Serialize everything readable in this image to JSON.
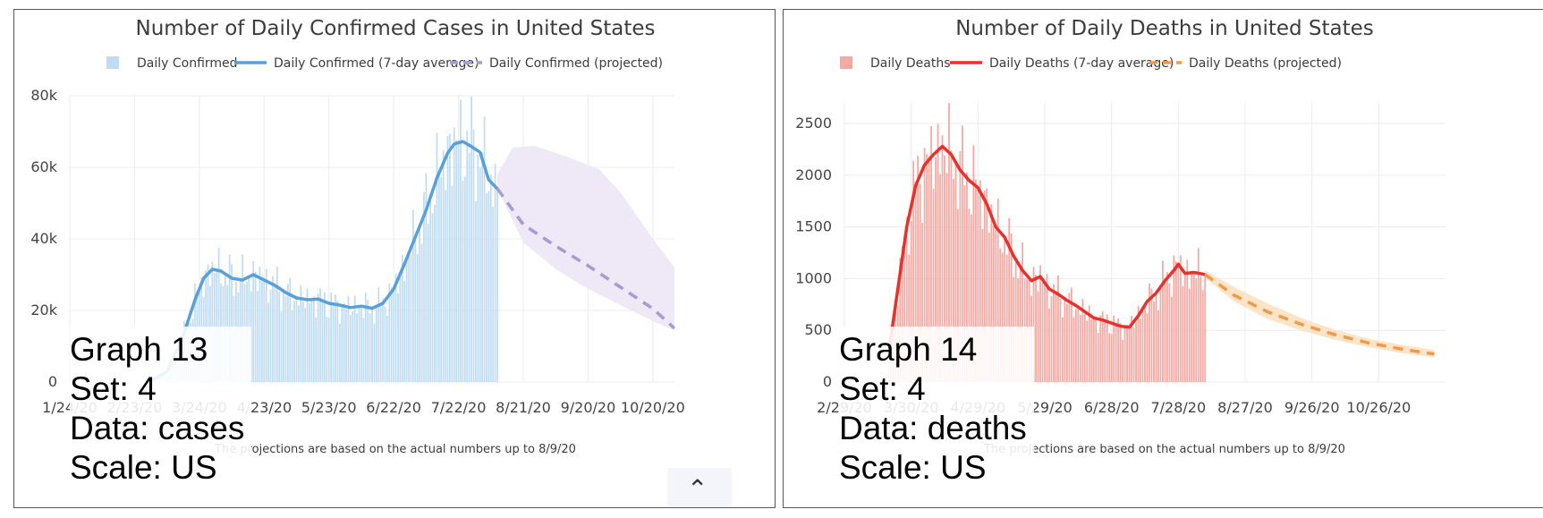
{
  "chart_data": [
    {
      "id": "cases",
      "type": "bar",
      "title": "Number of Daily Confirmed Cases in United States",
      "footnote": "The projections are based on the actual numbers up to 8/9/20",
      "legend": {
        "placement": "top-center",
        "bars": "Daily Confirmed",
        "avg": "Daily Confirmed (7-day average)",
        "proj": "Daily Confirmed (projected)"
      },
      "colors": {
        "bars": "#c0dcf3",
        "avg": "#5aa0d8",
        "proj": "#a99ad1",
        "band": "#efe8f6"
      },
      "ylim": [
        0,
        80000
      ],
      "yticks": [
        {
          "v": 0,
          "label": "0"
        },
        {
          "v": 20000,
          "label": "20k"
        },
        {
          "v": 40000,
          "label": "40k"
        },
        {
          "v": 60000,
          "label": "60k"
        },
        {
          "v": 80000,
          "label": "80k"
        }
      ],
      "xlim": [
        0,
        280
      ],
      "xticks": [
        {
          "v": 0,
          "label": "1/24/20"
        },
        {
          "v": 30,
          "label": "2/23/20"
        },
        {
          "v": 60,
          "label": "3/24/20"
        },
        {
          "v": 90,
          "label": "4/23/20"
        },
        {
          "v": 120,
          "label": "5/23/20"
        },
        {
          "v": 150,
          "label": "6/22/20"
        },
        {
          "v": 180,
          "label": "7/22/20"
        },
        {
          "v": 210,
          "label": "8/21/20"
        },
        {
          "v": 240,
          "label": "9/20/20"
        },
        {
          "v": 270,
          "label": "10/20/20"
        }
      ],
      "bars_range": [
        37,
        198
      ],
      "avg_points": [
        [
          37,
          0
        ],
        [
          45,
          3000
        ],
        [
          52,
          12000
        ],
        [
          58,
          23000
        ],
        [
          62,
          29000
        ],
        [
          66,
          31500
        ],
        [
          70,
          31000
        ],
        [
          75,
          29000
        ],
        [
          80,
          28500
        ],
        [
          85,
          30000
        ],
        [
          90,
          28500
        ],
        [
          95,
          27000
        ],
        [
          100,
          25000
        ],
        [
          105,
          23500
        ],
        [
          110,
          23000
        ],
        [
          115,
          23200
        ],
        [
          120,
          22000
        ],
        [
          125,
          21500
        ],
        [
          130,
          20800
        ],
        [
          135,
          21200
        ],
        [
          140,
          20600
        ],
        [
          145,
          22000
        ],
        [
          150,
          26000
        ],
        [
          155,
          33000
        ],
        [
          160,
          40500
        ],
        [
          165,
          48000
        ],
        [
          170,
          57000
        ],
        [
          175,
          64000
        ],
        [
          178,
          66500
        ],
        [
          182,
          67200
        ],
        [
          186,
          65800
        ],
        [
          190,
          64200
        ],
        [
          194,
          56500
        ],
        [
          198,
          54000
        ]
      ],
      "proj_points": [
        [
          198,
          54000
        ],
        [
          210,
          44000
        ],
        [
          225,
          38000
        ],
        [
          240,
          32500
        ],
        [
          255,
          26500
        ],
        [
          270,
          20500
        ],
        [
          280,
          15000
        ]
      ],
      "band_upper": [
        [
          198,
          58000
        ],
        [
          205,
          65500
        ],
        [
          215,
          66000
        ],
        [
          230,
          63000
        ],
        [
          245,
          59500
        ],
        [
          255,
          53000
        ],
        [
          270,
          40000
        ],
        [
          280,
          32000
        ]
      ],
      "band_lower": [
        [
          198,
          54000
        ],
        [
          210,
          39000
        ],
        [
          225,
          31500
        ],
        [
          240,
          26000
        ],
        [
          255,
          21500
        ],
        [
          270,
          17000
        ],
        [
          280,
          14500
        ]
      ],
      "overlay": {
        "graph": "Graph 13",
        "set": "Set: 4",
        "data": "Data: cases",
        "scale": "Scale: US"
      }
    },
    {
      "id": "deaths",
      "type": "bar",
      "title": "Number of Daily Deaths in United States",
      "footnote": "The projections are based on the actual numbers up to 8/9/20",
      "legend": {
        "placement": "top-center",
        "bars": "Daily Deaths",
        "avg": "Daily Deaths (7-day average)",
        "proj": "Daily Deaths (projected)"
      },
      "colors": {
        "bars": "#f4a9a3",
        "avg": "#e8312c",
        "proj": "#f09a4a",
        "band": "#fbe4c8"
      },
      "ylim": [
        0,
        2700
      ],
      "yticks": [
        {
          "v": 0,
          "label": "0"
        },
        {
          "v": 500,
          "label": "500"
        },
        {
          "v": 1000,
          "label": "1000"
        },
        {
          "v": 1500,
          "label": "1500"
        },
        {
          "v": 2000,
          "label": "2000"
        },
        {
          "v": 2500,
          "label": "2500"
        }
      ],
      "xlim": [
        0,
        270
      ],
      "xticks": [
        {
          "v": 0,
          "label": "2/29/20"
        },
        {
          "v": 30,
          "label": "3/30/20"
        },
        {
          "v": 60,
          "label": "4/29/20"
        },
        {
          "v": 90,
          "label": "5/29/20"
        },
        {
          "v": 120,
          "label": "6/28/20"
        },
        {
          "v": 150,
          "label": "7/28/20"
        },
        {
          "v": 180,
          "label": "8/27/20"
        },
        {
          "v": 210,
          "label": "9/26/20"
        },
        {
          "v": 240,
          "label": "10/26/20"
        }
      ],
      "bars_range": [
        20,
        162
      ],
      "avg_points": [
        [
          20,
          300
        ],
        [
          24,
          900
        ],
        [
          28,
          1500
        ],
        [
          32,
          1900
        ],
        [
          36,
          2100
        ],
        [
          40,
          2200
        ],
        [
          44,
          2280
        ],
        [
          48,
          2200
        ],
        [
          52,
          2050
        ],
        [
          56,
          1950
        ],
        [
          60,
          1880
        ],
        [
          64,
          1720
        ],
        [
          68,
          1500
        ],
        [
          72,
          1400
        ],
        [
          76,
          1220
        ],
        [
          80,
          1080
        ],
        [
          84,
          980
        ],
        [
          88,
          1020
        ],
        [
          92,
          900
        ],
        [
          96,
          850
        ],
        [
          100,
          790
        ],
        [
          104,
          740
        ],
        [
          108,
          680
        ],
        [
          112,
          620
        ],
        [
          116,
          600
        ],
        [
          120,
          570
        ],
        [
          124,
          540
        ],
        [
          128,
          530
        ],
        [
          132,
          640
        ],
        [
          136,
          780
        ],
        [
          140,
          860
        ],
        [
          144,
          980
        ],
        [
          148,
          1080
        ],
        [
          150,
          1140
        ],
        [
          153,
          1050
        ],
        [
          157,
          1060
        ],
        [
          162,
          1040
        ]
      ],
      "proj_points": [
        [
          162,
          1040
        ],
        [
          175,
          840
        ],
        [
          190,
          680
        ],
        [
          205,
          560
        ],
        [
          220,
          460
        ],
        [
          235,
          380
        ],
        [
          250,
          320
        ],
        [
          265,
          270
        ]
      ],
      "band_upper": [
        [
          162,
          1080
        ],
        [
          175,
          920
        ],
        [
          190,
          760
        ],
        [
          205,
          620
        ],
        [
          220,
          510
        ],
        [
          235,
          420
        ],
        [
          250,
          360
        ],
        [
          265,
          310
        ]
      ],
      "band_lower": [
        [
          162,
          1010
        ],
        [
          175,
          780
        ],
        [
          190,
          610
        ],
        [
          205,
          500
        ],
        [
          220,
          410
        ],
        [
          235,
          340
        ],
        [
          250,
          280
        ],
        [
          265,
          240
        ]
      ],
      "overlay": {
        "graph": "Graph 14",
        "set": "Set: 4",
        "data": "Data: deaths",
        "scale": "Scale: US"
      }
    }
  ]
}
